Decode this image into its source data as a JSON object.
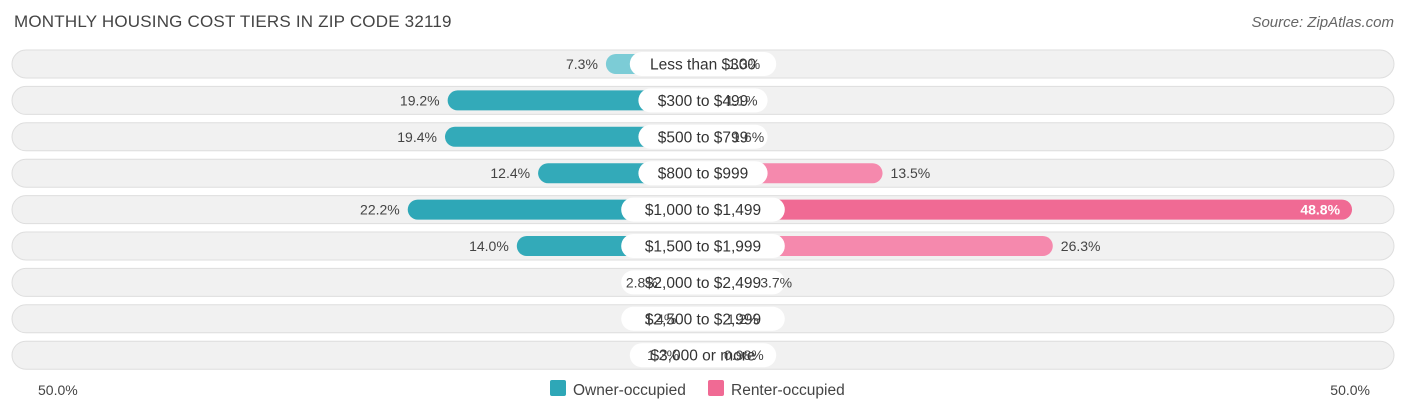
{
  "title": "MONTHLY HOUSING COST TIERS IN ZIP CODE 32119",
  "source": "Source: ZipAtlas.com",
  "colors": {
    "owner": "#5bbdca",
    "owner_strong": "#2ea7b7",
    "renter": "#f7a3bd",
    "renter_strong": "#f06a94",
    "row_bg": "#f1f1f1",
    "row_border": "#dedede"
  },
  "chart_data": {
    "type": "bar",
    "orientation": "horizontal-diverging",
    "categories": [
      "Less than $300",
      "$300 to $499",
      "$500 to $799",
      "$800 to $999",
      "$1,000 to $1,499",
      "$1,500 to $1,999",
      "$2,000 to $2,499",
      "$2,500 to $2,999",
      "$3,000 or more"
    ],
    "series": [
      {
        "name": "Owner-occupied",
        "values": [
          7.3,
          19.2,
          19.4,
          12.4,
          22.2,
          14.0,
          2.8,
          1.4,
          1.2
        ],
        "labels": [
          "7.3%",
          "19.2%",
          "19.4%",
          "12.4%",
          "22.2%",
          "14.0%",
          "2.8%",
          "1.4%",
          "1.2%"
        ]
      },
      {
        "name": "Renter-occupied",
        "values": [
          1.3,
          1.1,
          1.6,
          13.5,
          48.8,
          26.3,
          3.7,
          1.2,
          0.98
        ],
        "labels": [
          "1.3%",
          "1.1%",
          "1.6%",
          "13.5%",
          "48.8%",
          "26.3%",
          "3.7%",
          "1.2%",
          "0.98%"
        ]
      }
    ],
    "xlim": [
      -50,
      50
    ],
    "axis_labels": {
      "left": "50.0%",
      "right": "50.0%"
    },
    "legend_position": "bottom-center"
  }
}
